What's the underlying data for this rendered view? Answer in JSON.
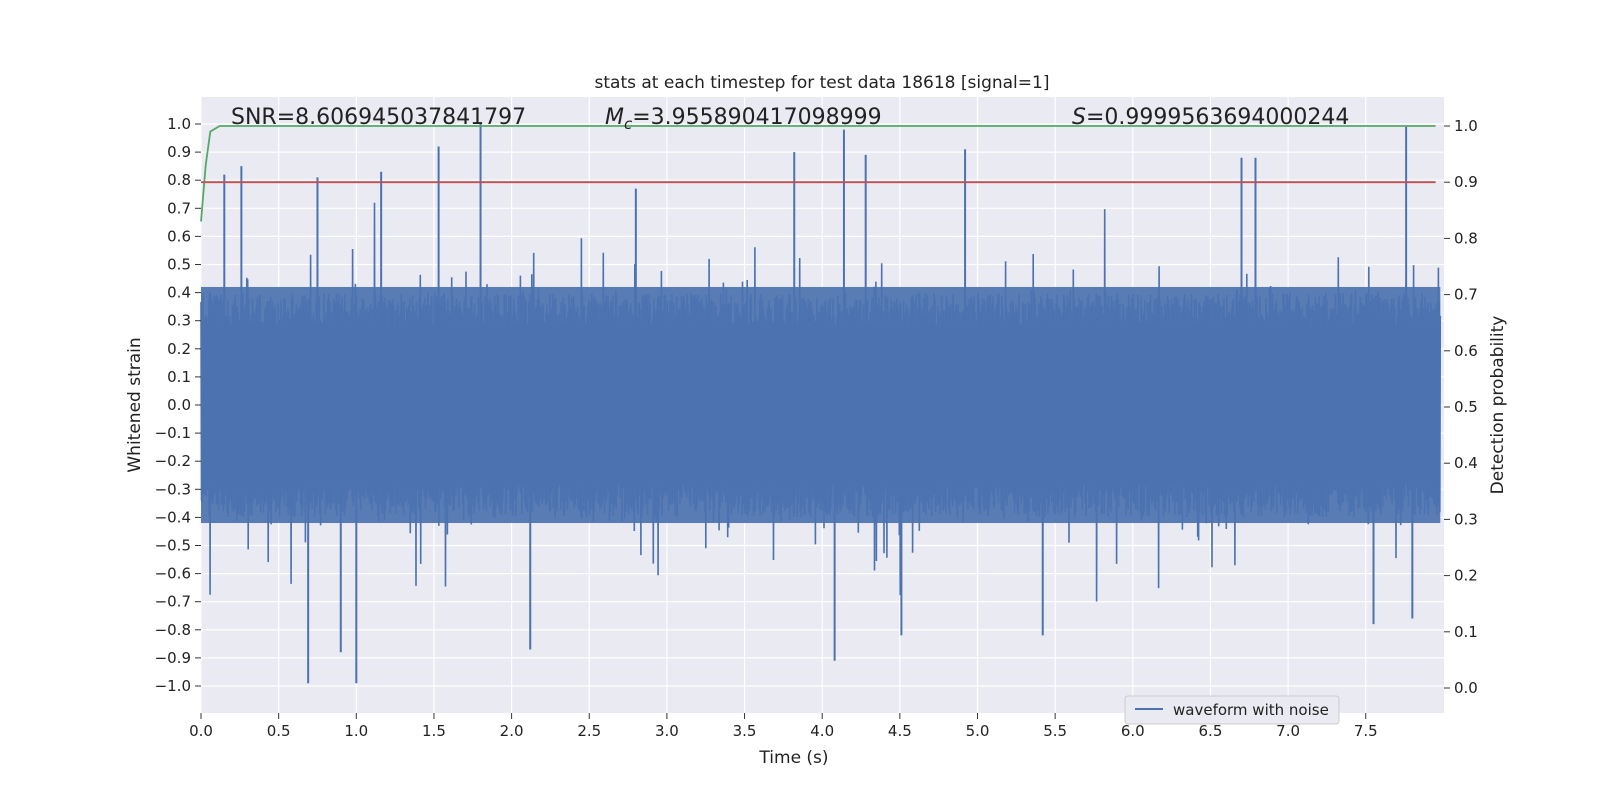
{
  "chart_data": {
    "type": "line",
    "title": "stats at each timestep for test data 18618 [signal=1]",
    "xlabel": "Time (s)",
    "ylabel_left": "Whitened strain",
    "ylabel_right": "Detection probability",
    "xlim": [
      0.0,
      8.0
    ],
    "ylim_left": [
      -1.09,
      1.09
    ],
    "ylim_right": [
      -0.045,
      1.045
    ],
    "x_ticks": [
      0.0,
      0.5,
      1.0,
      1.5,
      2.0,
      2.5,
      3.0,
      3.5,
      4.0,
      4.5,
      5.0,
      5.5,
      6.0,
      6.5,
      7.0,
      7.5
    ],
    "x_tick_labels": [
      "0.0",
      "0.5",
      "1.0",
      "1.5",
      "2.0",
      "2.5",
      "3.0",
      "3.5",
      "4.0",
      "4.5",
      "5.0",
      "5.5",
      "6.0",
      "6.5",
      "7.0",
      "7.5"
    ],
    "y_left_ticks": [
      1.0,
      0.9,
      0.8,
      0.7,
      0.6,
      0.5,
      0.4,
      0.3,
      0.2,
      0.1,
      0.0,
      -0.1,
      -0.2,
      -0.3,
      -0.4,
      -0.5,
      -0.6,
      -0.7,
      -0.8,
      -0.9,
      -1.0
    ],
    "y_left_tick_labels": [
      "1.0",
      "0.9",
      "0.8",
      "0.7",
      "0.6",
      "0.5",
      "0.4",
      "0.3",
      "0.2",
      "0.1",
      "0.0",
      "−0.1",
      "−0.2",
      "−0.3",
      "−0.4",
      "−0.5",
      "−0.6",
      "−0.7",
      "−0.8",
      "−0.9",
      "−1.0"
    ],
    "y_right_ticks": [
      1.0,
      0.9,
      0.8,
      0.7,
      0.6,
      0.5,
      0.4,
      0.3,
      0.2,
      0.1,
      0.0
    ],
    "y_right_tick_labels": [
      "1.0",
      "0.9",
      "0.8",
      "0.7",
      "0.6",
      "0.5",
      "0.4",
      "0.3",
      "0.2",
      "0.1",
      "0.0"
    ],
    "grid": true,
    "legend": {
      "position": "lower-right",
      "entries": [
        "waveform with noise"
      ]
    },
    "annotations": {
      "snr": "SNR=8.606945037841797",
      "mc_symbol": "M",
      "mc_sub": "c",
      "mc_value": "=3.955890417098999",
      "s_symbol": "S",
      "s_value": "=0.9999563694000244"
    },
    "series": [
      {
        "name": "waveform with noise",
        "axis": "left",
        "color": "#4c72b0",
        "style": "noise",
        "envelope_upper": 0.42,
        "envelope_lower": -0.42,
        "spikes": [
          {
            "x": 0.15,
            "y": 0.82
          },
          {
            "x": 0.26,
            "y": 0.85
          },
          {
            "x": 0.75,
            "y": 0.81
          },
          {
            "x": 1.16,
            "y": 0.83
          },
          {
            "x": 1.53,
            "y": 0.92
          },
          {
            "x": 1.8,
            "y": 1.0
          },
          {
            "x": 2.8,
            "y": 0.77
          },
          {
            "x": 3.82,
            "y": 0.9
          },
          {
            "x": 4.14,
            "y": 0.98
          },
          {
            "x": 4.28,
            "y": 0.89
          },
          {
            "x": 4.92,
            "y": 0.91
          },
          {
            "x": 6.7,
            "y": 0.88
          },
          {
            "x": 6.79,
            "y": 0.88
          },
          {
            "x": 7.76,
            "y": 0.99
          },
          {
            "x": 0.69,
            "y": -0.99
          },
          {
            "x": 1.0,
            "y": -0.99
          },
          {
            "x": 0.9,
            "y": -0.88
          },
          {
            "x": 2.12,
            "y": -0.87
          },
          {
            "x": 4.08,
            "y": -0.91
          },
          {
            "x": 4.51,
            "y": -0.82
          },
          {
            "x": 5.42,
            "y": -0.82
          },
          {
            "x": 7.55,
            "y": -0.78
          },
          {
            "x": 7.8,
            "y": -0.76
          }
        ]
      },
      {
        "name": "detection probability",
        "axis": "right",
        "color": "#55a868",
        "x": [
          0.0,
          0.03,
          0.06,
          0.12,
          7.95
        ],
        "y": [
          0.83,
          0.93,
          0.99,
          1.0,
          1.0
        ]
      },
      {
        "name": "threshold",
        "axis": "right",
        "color": "#c44e52",
        "x": [
          0.0,
          7.95
        ],
        "y": [
          0.9,
          0.9
        ]
      }
    ]
  }
}
